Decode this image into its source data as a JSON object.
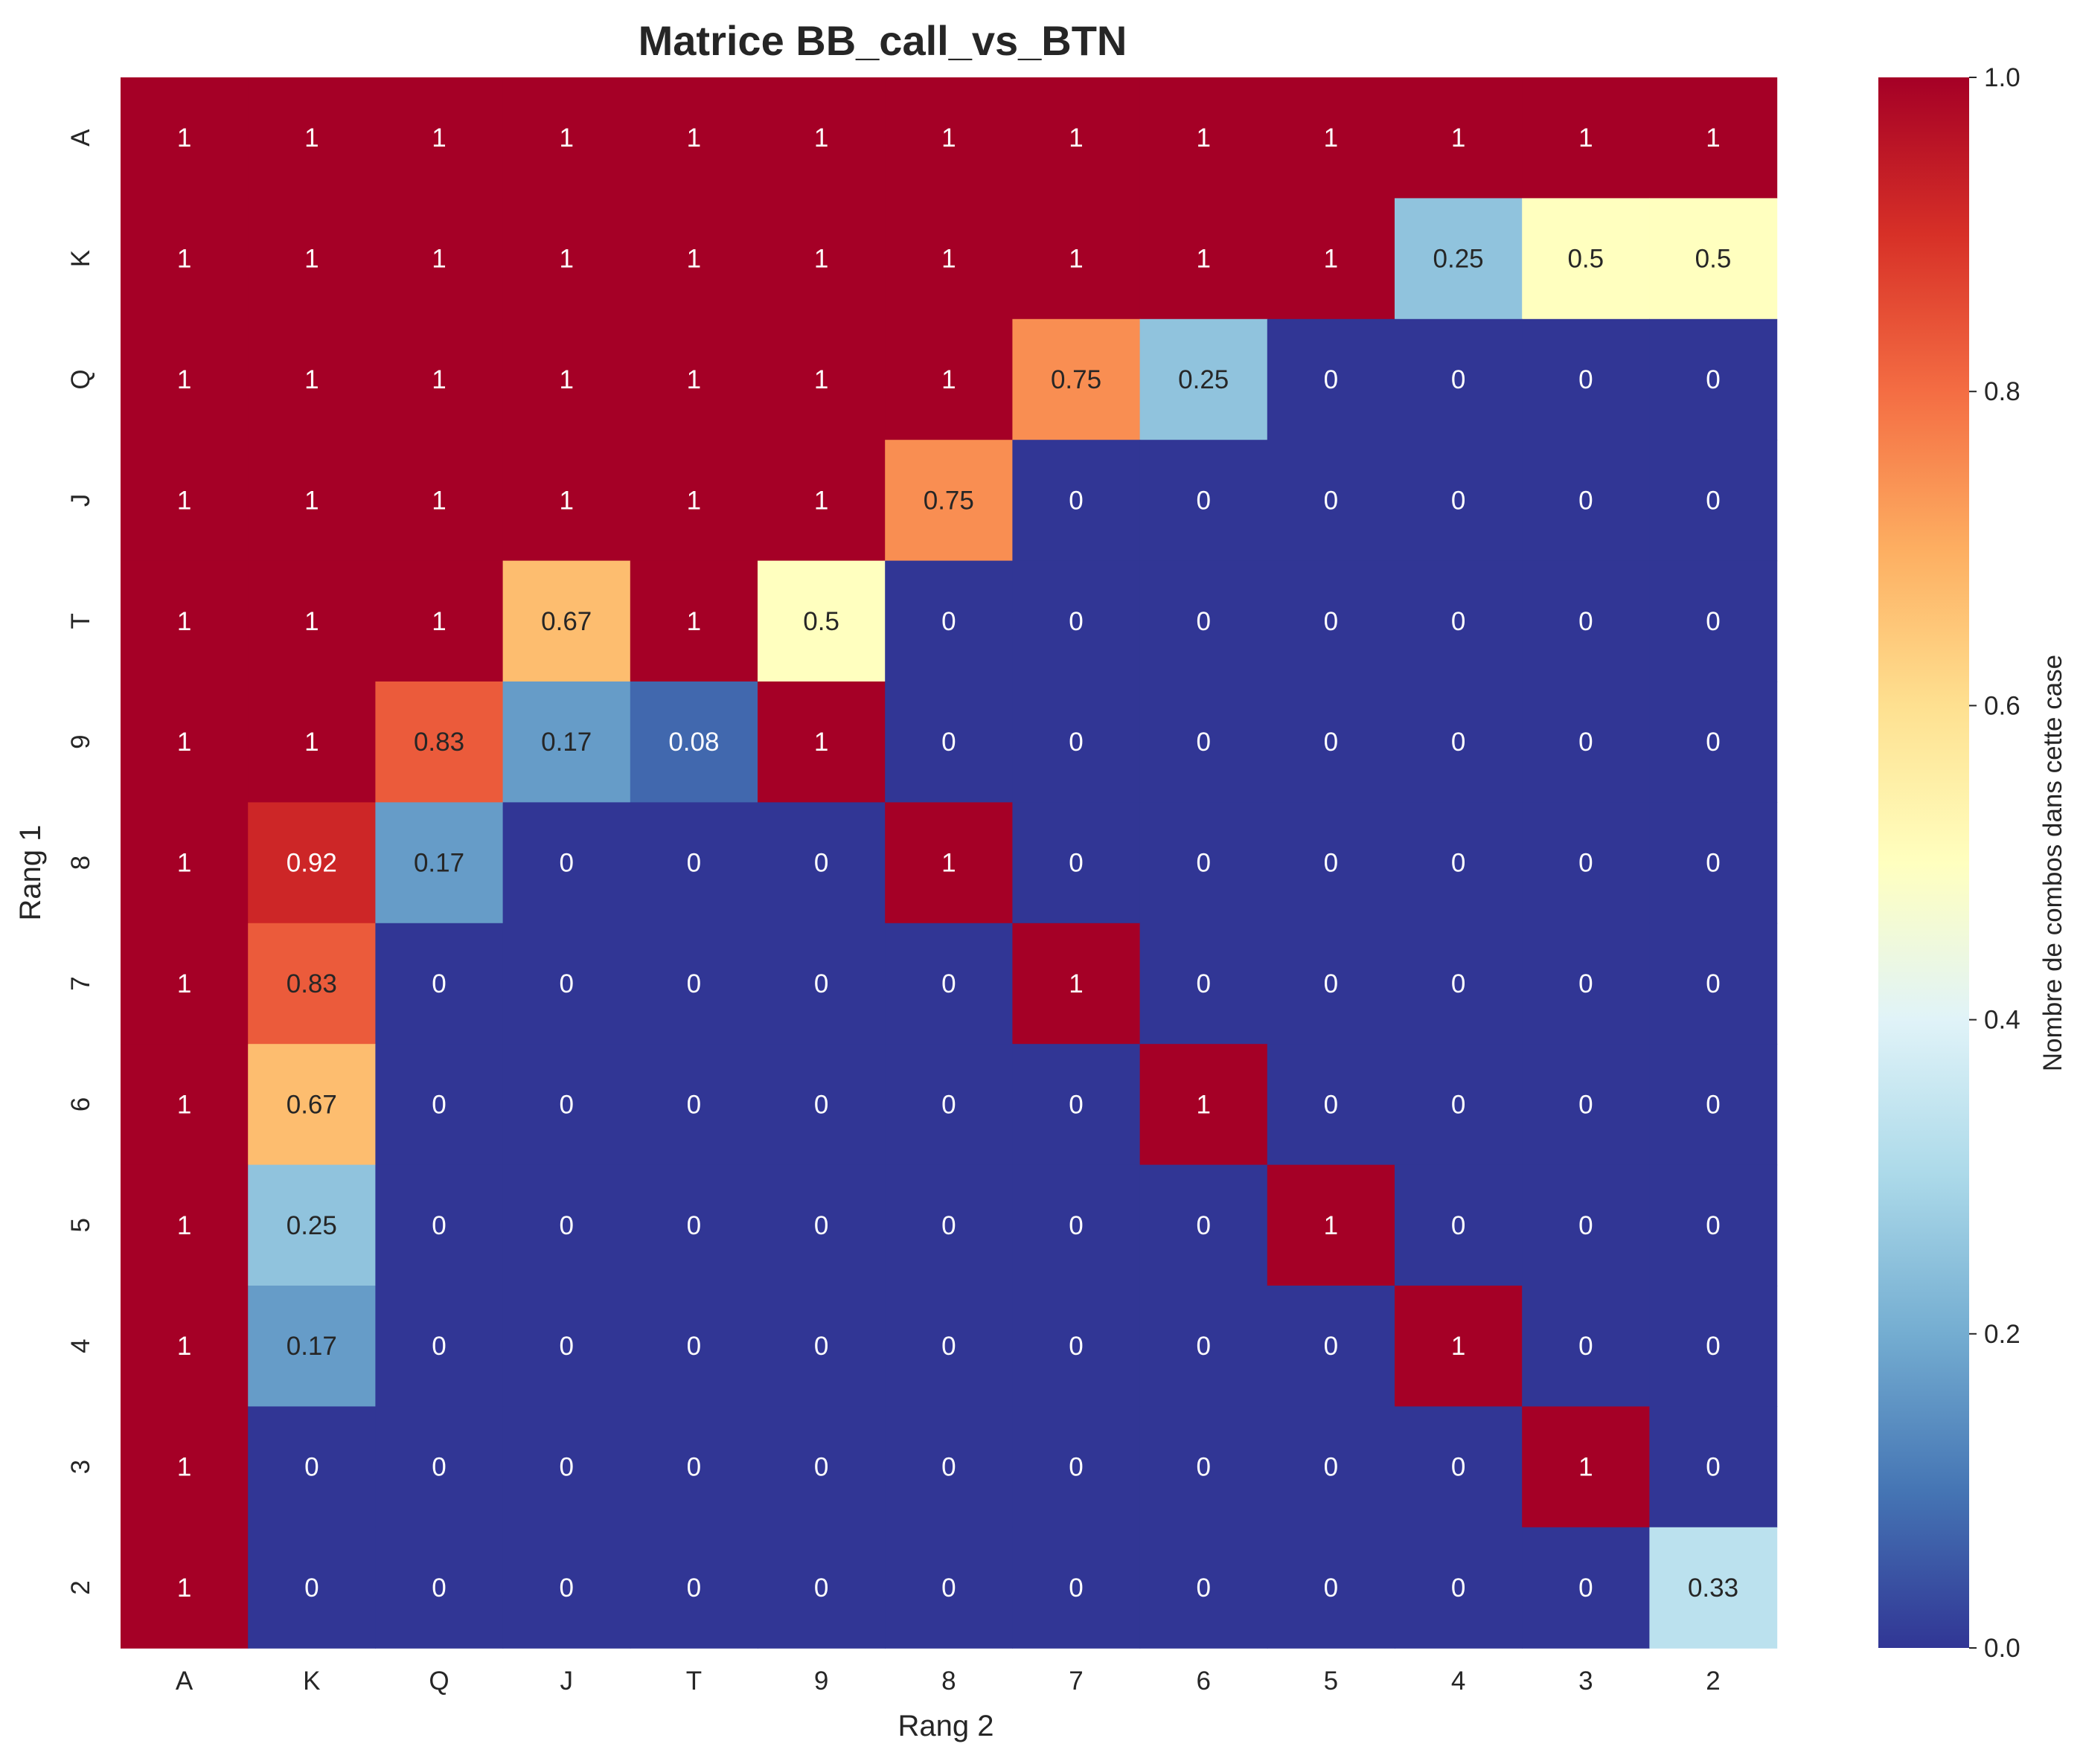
{
  "chart_data": {
    "type": "heatmap",
    "title": "Matrice BB_call_vs_BTN",
    "xlabel": "Rang 2",
    "ylabel": "Rang 1",
    "x_categories": [
      "A",
      "K",
      "Q",
      "J",
      "T",
      "9",
      "8",
      "7",
      "6",
      "5",
      "4",
      "3",
      "2"
    ],
    "y_categories": [
      "A",
      "K",
      "Q",
      "J",
      "T",
      "9",
      "8",
      "7",
      "6",
      "5",
      "4",
      "3",
      "2"
    ],
    "values": [
      [
        1,
        1,
        1,
        1,
        1,
        1,
        1,
        1,
        1,
        1,
        1,
        1,
        1
      ],
      [
        1,
        1,
        1,
        1,
        1,
        1,
        1,
        1,
        1,
        1,
        0.25,
        0.5,
        0.5
      ],
      [
        1,
        1,
        1,
        1,
        1,
        1,
        1,
        0.75,
        0.25,
        0,
        0,
        0,
        0
      ],
      [
        1,
        1,
        1,
        1,
        1,
        1,
        0.75,
        0,
        0,
        0,
        0,
        0,
        0
      ],
      [
        1,
        1,
        1,
        0.67,
        1,
        0.5,
        0,
        0,
        0,
        0,
        0,
        0,
        0
      ],
      [
        1,
        1,
        0.83,
        0.17,
        0.08,
        1,
        0,
        0,
        0,
        0,
        0,
        0,
        0
      ],
      [
        1,
        0.92,
        0.17,
        0,
        0,
        0,
        1,
        0,
        0,
        0,
        0,
        0,
        0
      ],
      [
        1,
        0.83,
        0,
        0,
        0,
        0,
        0,
        1,
        0,
        0,
        0,
        0,
        0
      ],
      [
        1,
        0.67,
        0,
        0,
        0,
        0,
        0,
        0,
        1,
        0,
        0,
        0,
        0
      ],
      [
        1,
        0.25,
        0,
        0,
        0,
        0,
        0,
        0,
        0,
        1,
        0,
        0,
        0
      ],
      [
        1,
        0.17,
        0,
        0,
        0,
        0,
        0,
        0,
        0,
        0,
        1,
        0,
        0
      ],
      [
        1,
        0,
        0,
        0,
        0,
        0,
        0,
        0,
        0,
        0,
        0,
        1,
        0
      ],
      [
        1,
        0,
        0,
        0,
        0,
        0,
        0,
        0,
        0,
        0,
        0,
        0,
        0.33
      ]
    ],
    "colormap": "RdYlBu_r",
    "vmin": 0,
    "vmax": 1,
    "colorbar": {
      "label": "Nombre de combos dans cette case",
      "ticks": [
        "0.0",
        "0.2",
        "0.4",
        "0.6",
        "0.8",
        "1.0"
      ]
    }
  }
}
